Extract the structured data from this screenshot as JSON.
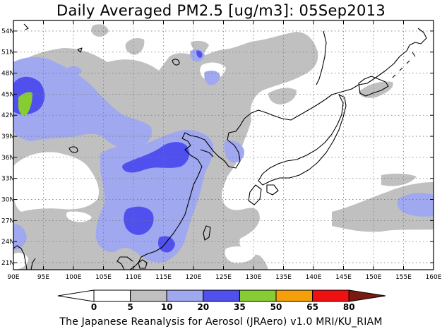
{
  "title": "Daily Averaged PM2.5 [ug/m3]: 05Sep2013",
  "footer": "The Japanese Reanalysis for Aerosol (JRAero) v1.0 MRI/KU_RIAM",
  "map": {
    "projection": "lat-lon",
    "lon_range": [
      90,
      160
    ],
    "lat_range": [
      20,
      55.5
    ],
    "lon_ticks": [
      "90E",
      "95E",
      "100E",
      "105E",
      "110E",
      "115E",
      "120E",
      "125E",
      "130E",
      "135E",
      "140E",
      "145E",
      "150E",
      "155E",
      "160E"
    ],
    "lat_ticks": [
      "21N",
      "24N",
      "27N",
      "30N",
      "33N",
      "36N",
      "39N",
      "42N",
      "45N",
      "48N",
      "51N",
      "54N"
    ],
    "grid": true,
    "background_color": "#ffffff"
  },
  "colorbar": {
    "labels": [
      "0",
      "5",
      "10",
      "20",
      "35",
      "50",
      "65",
      "80"
    ],
    "bins": [
      {
        "range": "0-5",
        "color": "#ffffff"
      },
      {
        "range": "5-10",
        "color": "#c0c0c0"
      },
      {
        "range": "10-20",
        "color": "#a0a8f0"
      },
      {
        "range": "20-35",
        "color": "#5050ee"
      },
      {
        "range": "35-50",
        "color": "#88cc33"
      },
      {
        "range": "50-65",
        "color": "#f59f0a"
      },
      {
        "range": "65-80",
        "color": "#ee1111"
      },
      {
        "range": ">80",
        "color": "#7a1a10"
      }
    ],
    "underflow_color": "#ffffff"
  }
}
